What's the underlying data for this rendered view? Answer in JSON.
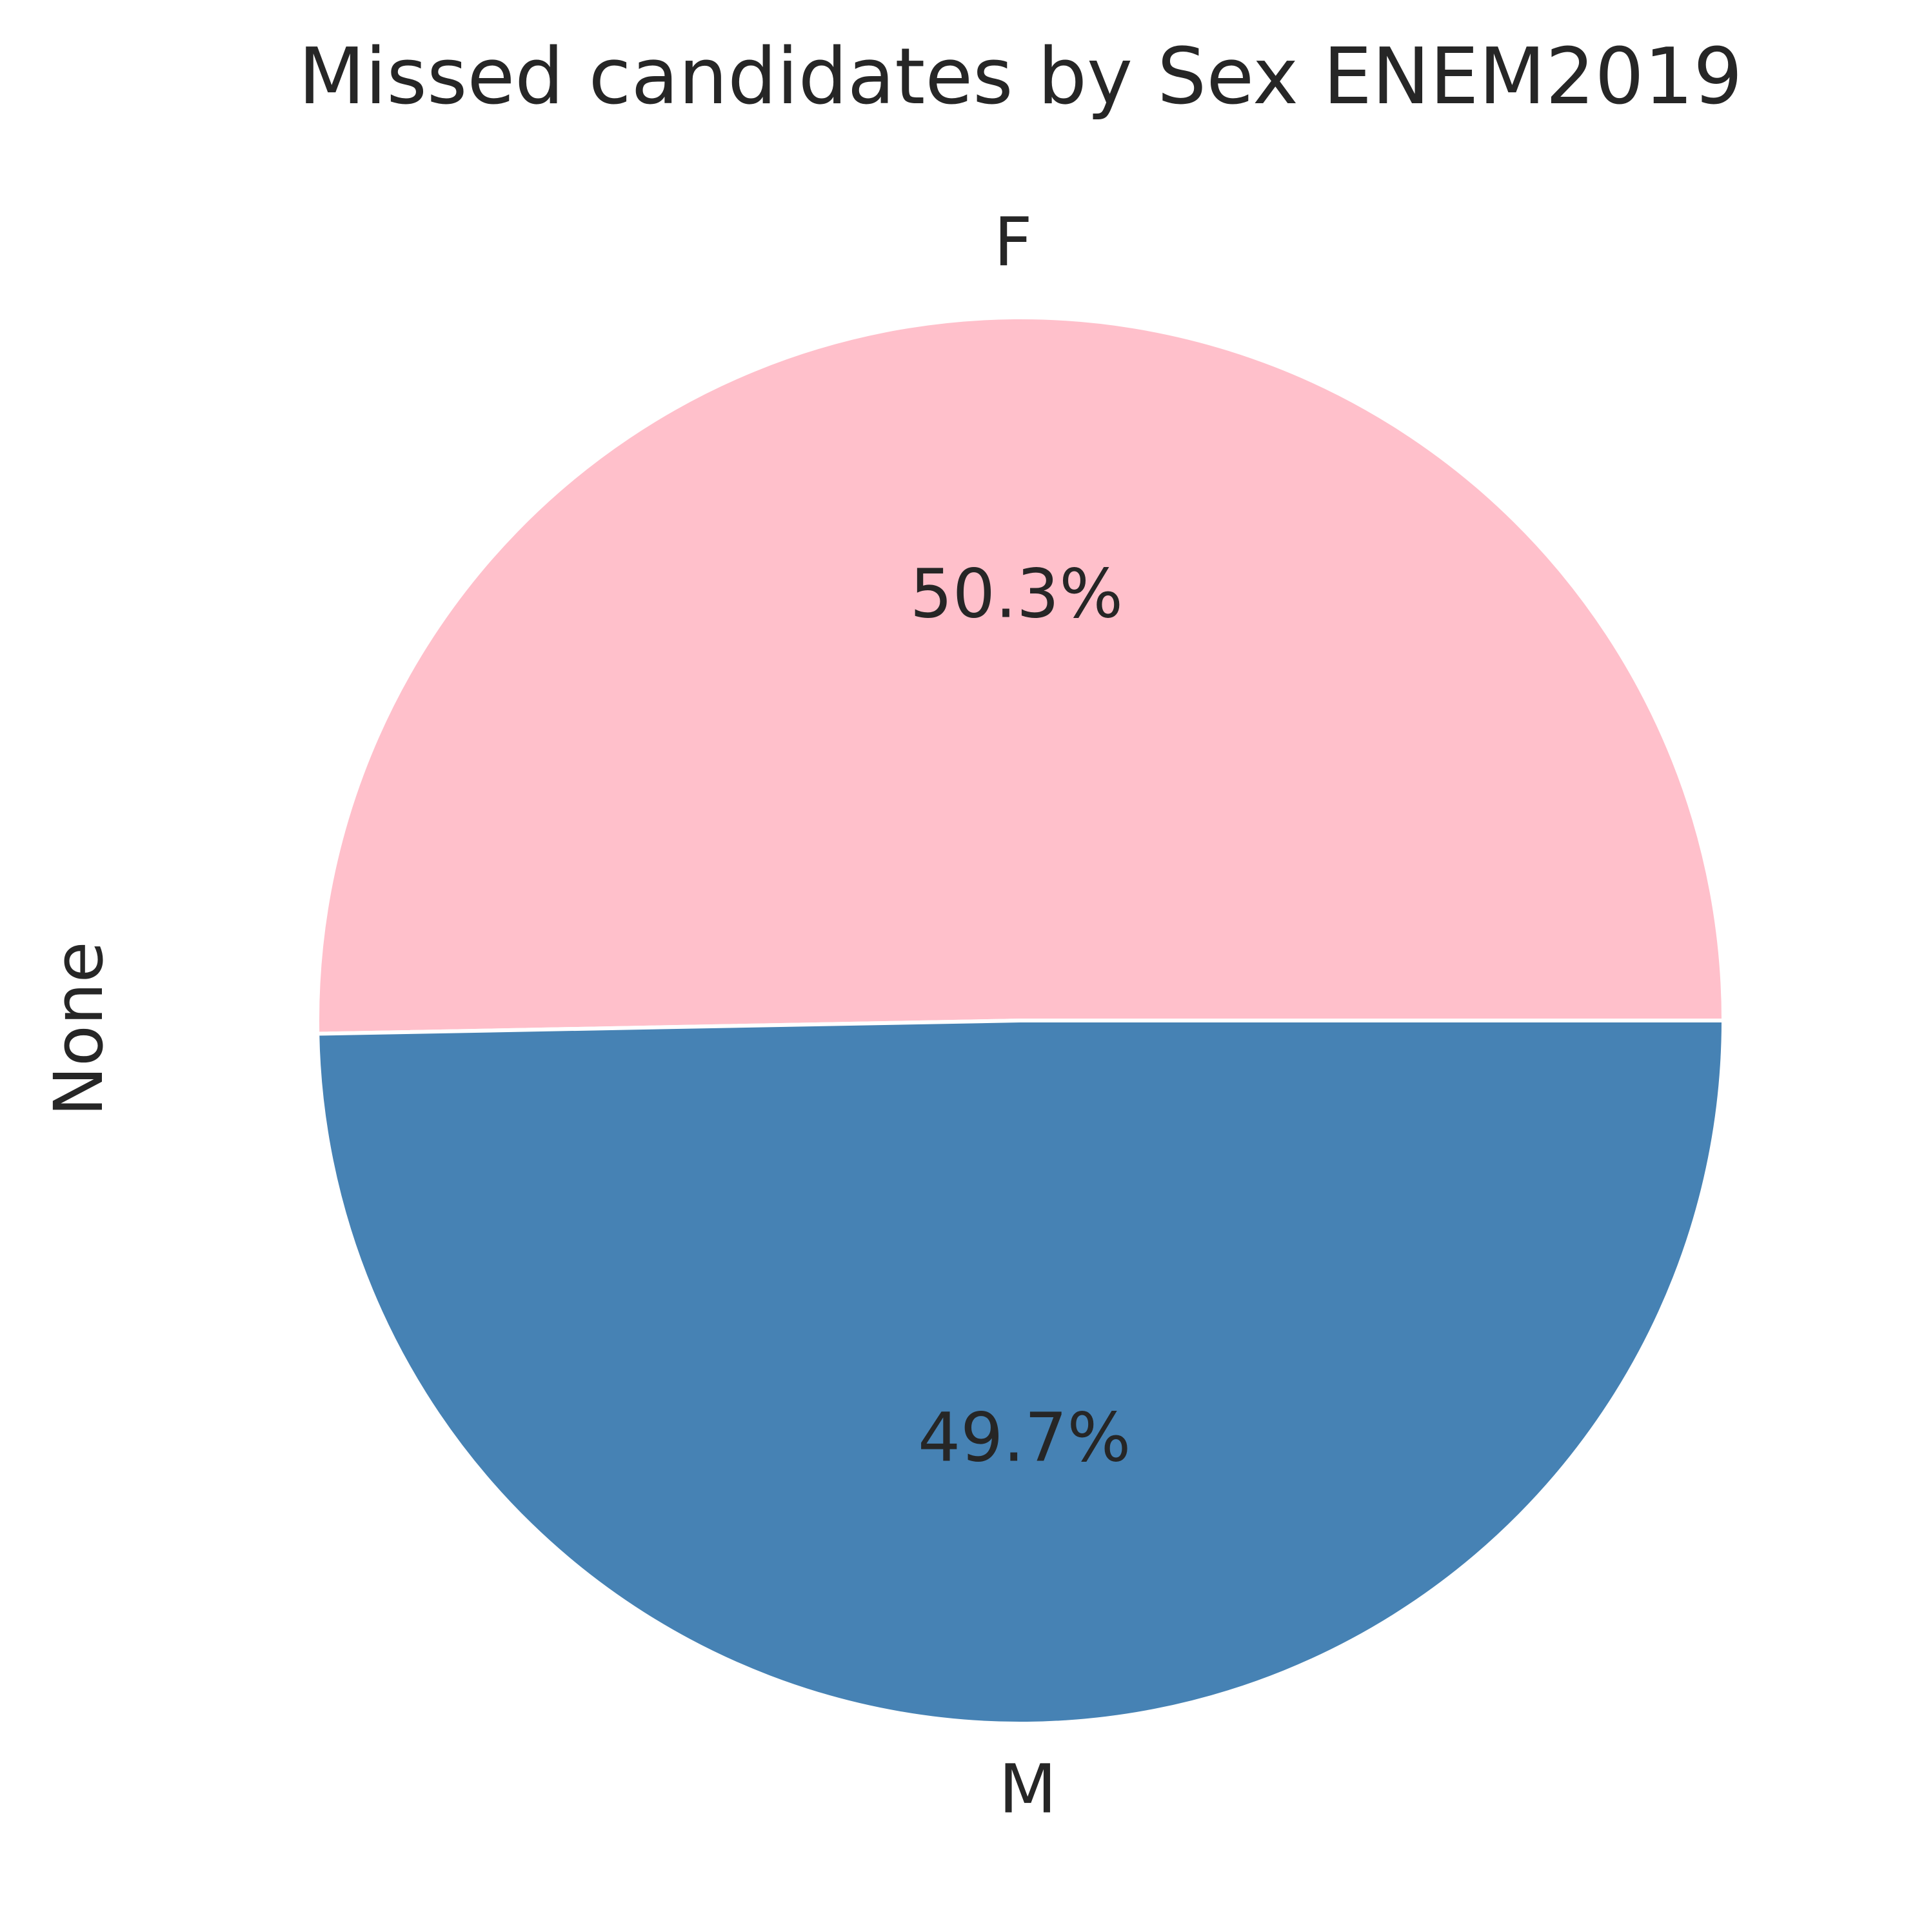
{
  "chart_data": {
    "type": "pie",
    "title": "Missed candidates by Sex ENEM2019",
    "ylabel": "None",
    "start_angle_deg": 0,
    "counterclockwise": true,
    "slices": [
      {
        "label": "F",
        "value": 50.3,
        "pct_label": "50.3%",
        "color": "#FFC0CB"
      },
      {
        "label": "M",
        "value": 49.7,
        "pct_label": "49.7%",
        "color": "#4682B4"
      }
    ],
    "edge_color": "#FFFFFF"
  }
}
